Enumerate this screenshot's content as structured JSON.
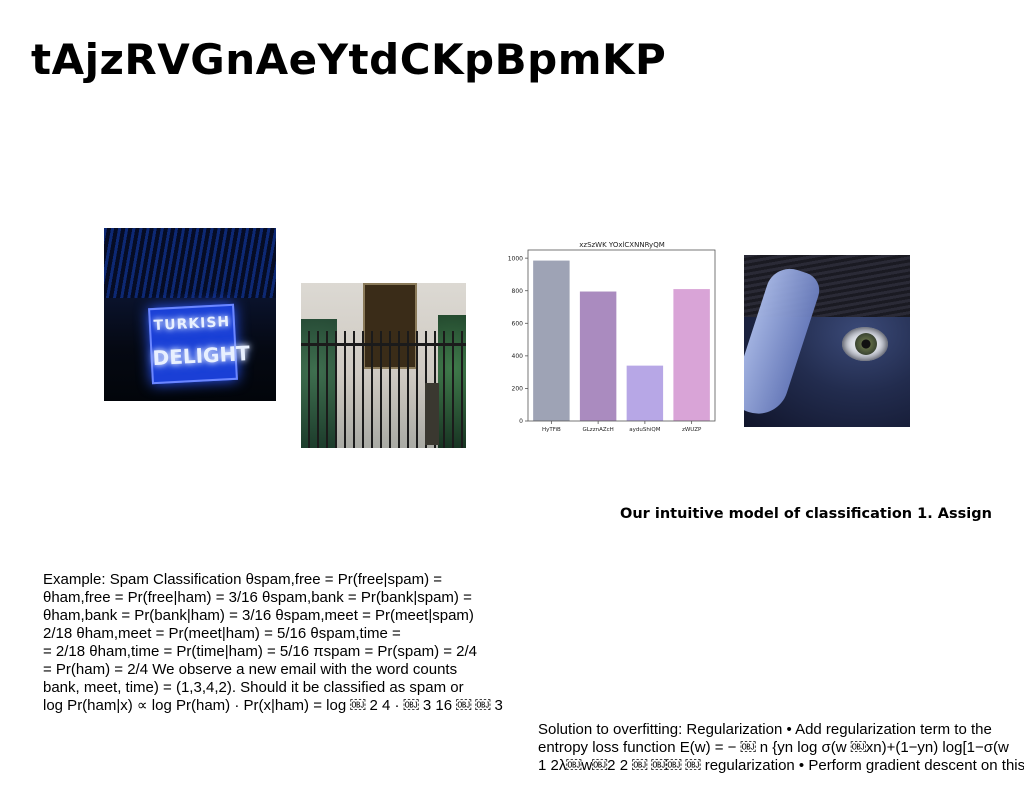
{
  "title": "tAjzRVGnAeYtdCKpBpmKP",
  "chart_data": {
    "type": "bar",
    "title": "xzSzWK YOxlCXNNRyQM",
    "categories": [
      "HyTFiB",
      "GLzznAZcH",
      "ayduShiQM",
      "zWUZP"
    ],
    "values": [
      985,
      795,
      340,
      810
    ],
    "ylim": [
      0,
      1050
    ],
    "yticks": [
      0,
      200,
      400,
      600,
      800,
      1000
    ],
    "colors": [
      "#9ea3b5",
      "#aa8bbf",
      "#b7a7e6",
      "#d9a4d7"
    ],
    "xlabel": "",
    "ylabel": "",
    "grid": false
  },
  "subtitle": "Our intuitive model of classification 1. Assign",
  "left_text": [
    "Example: Spam Classification θspam,free = Pr(free|spam) =",
    "θham,free = Pr(free|ham) = 3/16 θspam,bank = Pr(bank|spam) =",
    "θham,bank = Pr(bank|ham) = 3/16 θspam,meet = Pr(meet|spam)",
    "2/18 θham,meet = Pr(meet|ham) = 5/16 θspam,time =",
    "= 2/18 θham,time = Pr(time|ham) = 5/16 πspam = Pr(spam) = 2/4",
    "= Pr(ham) = 2/4 We observe a new email with the word counts",
    "bank, meet, time) = (1,3,4,2). Should it be classified as spam or",
    "log Pr(ham|x) ∝ log Pr(ham) · Pr(x|ham) = log ￼ 2 4 · ￼ 3 16 ￼ ￼ 3"
  ],
  "right_text": [
    "Solution to overfitting: Regularization • Add regularization term to the",
    "entropy loss function E(w) = − ￼ n {yn log σ(w ￼xn)+(1−yn) log[1−σ(w",
    "1 2λ￼w￼2 2 ￼ ￼￼ ￼ regularization • Perform gradient descent on this"
  ]
}
